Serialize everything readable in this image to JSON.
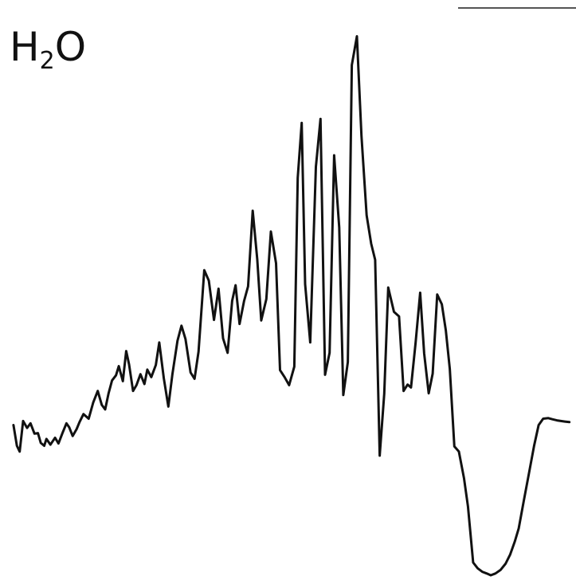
{
  "chart_data": {
    "type": "line",
    "title": "",
    "xlabel": "",
    "ylabel": "",
    "label": {
      "main": "H",
      "subscript": "2",
      "tail": "O"
    },
    "xlim": [
      0,
      100
    ],
    "ylim": [
      0,
      100
    ],
    "grid": false,
    "legend": "none",
    "line_color": "#111111",
    "series": [
      {
        "name": "",
        "x": [
          1.8,
          2.4,
          2.9,
          3.5,
          4.2,
          4.8,
          5.5,
          6.1,
          6.6,
          7.2,
          7.6,
          8.3,
          9.1,
          9.7,
          10.4,
          11.1,
          11.6,
          12.2,
          12.9,
          13.4,
          14.1,
          15.0,
          15.8,
          16.6,
          17.3,
          17.9,
          18.5,
          19.1,
          19.8,
          20.3,
          21.0,
          21.6,
          22.1,
          22.8,
          23.4,
          24.1,
          24.8,
          25.3,
          26.0,
          26.8,
          27.4,
          28.2,
          29.0,
          29.7,
          30.6,
          31.3,
          32.0,
          32.9,
          33.6,
          34.3,
          35.3,
          36.1,
          37.0,
          37.8,
          38.6,
          39.4,
          40.2,
          40.8,
          41.5,
          42.3,
          43.0,
          43.8,
          44.6,
          45.3,
          46.2,
          47.0,
          47.9,
          48.6,
          49.4,
          50.2,
          51.1,
          51.7,
          52.4,
          53.0,
          53.9,
          54.9,
          55.7,
          56.5,
          57.3,
          58.1,
          59.0,
          59.7,
          60.5,
          61.2,
          62.1,
          62.9,
          63.8,
          64.6,
          65.3,
          66.1,
          66.9,
          67.6,
          68.6,
          69.5,
          70.3,
          71.0,
          71.6,
          72.4,
          73.2,
          73.9,
          74.7,
          75.4,
          76.2,
          77.0,
          77.7,
          78.4,
          79.2,
          80.0,
          80.9,
          81.6,
          82.5,
          83.3,
          84.1,
          84.9,
          85.6,
          86.4,
          87.3,
          88.2,
          89.0,
          89.8,
          90.5,
          91.4,
          92.3,
          93.2,
          94.0,
          94.8,
          95.7,
          96.4,
          97.2,
          97.9,
          98.6,
          99.4
        ],
        "y": [
          27.8,
          24.2,
          23.2,
          28.5,
          27.3,
          28.1,
          26.3,
          26.4,
          24.7,
          24.2,
          25.4,
          24.4,
          25.6,
          24.6,
          26.4,
          28.1,
          27.4,
          25.9,
          27.1,
          28.3,
          29.7,
          28.9,
          31.7,
          33.7,
          31.3,
          30.5,
          33.3,
          35.5,
          36.4,
          38.0,
          35.4,
          40.6,
          38.3,
          33.7,
          34.7,
          36.6,
          34.9,
          37.4,
          36.1,
          38.2,
          42.1,
          35.9,
          31.0,
          36.6,
          42.4,
          45.0,
          42.7,
          36.9,
          35.8,
          40.5,
          54.6,
          52.8,
          46.0,
          51.4,
          42.8,
          40.3,
          49.3,
          52.0,
          45.3,
          49.3,
          51.8,
          64.9,
          56.5,
          45.9,
          49.6,
          61.3,
          55.8,
          37.3,
          36.1,
          34.7,
          37.9,
          70.6,
          80.1,
          52.2,
          42.1,
          72.5,
          80.8,
          36.5,
          40.3,
          74.5,
          62.0,
          33.0,
          38.7,
          90.1,
          95.1,
          77.9,
          64.1,
          59.2,
          56.4,
          22.5,
          33.2,
          51.6,
          47.4,
          46.6,
          33.7,
          34.8,
          34.3,
          42.1,
          50.7,
          40.2,
          33.3,
          36.7,
          50.4,
          48.7,
          44.2,
          37.5,
          24.1,
          23.2,
          18.6,
          13.7,
          4.0,
          3.0,
          2.4,
          2.1,
          1.8,
          2.1,
          2.7,
          3.8,
          5.4,
          7.6,
          9.9,
          14.7,
          19.4,
          24.2,
          27.8,
          28.9,
          29.0,
          28.8,
          28.6,
          28.5,
          28.4,
          28.3
        ]
      }
    ]
  }
}
